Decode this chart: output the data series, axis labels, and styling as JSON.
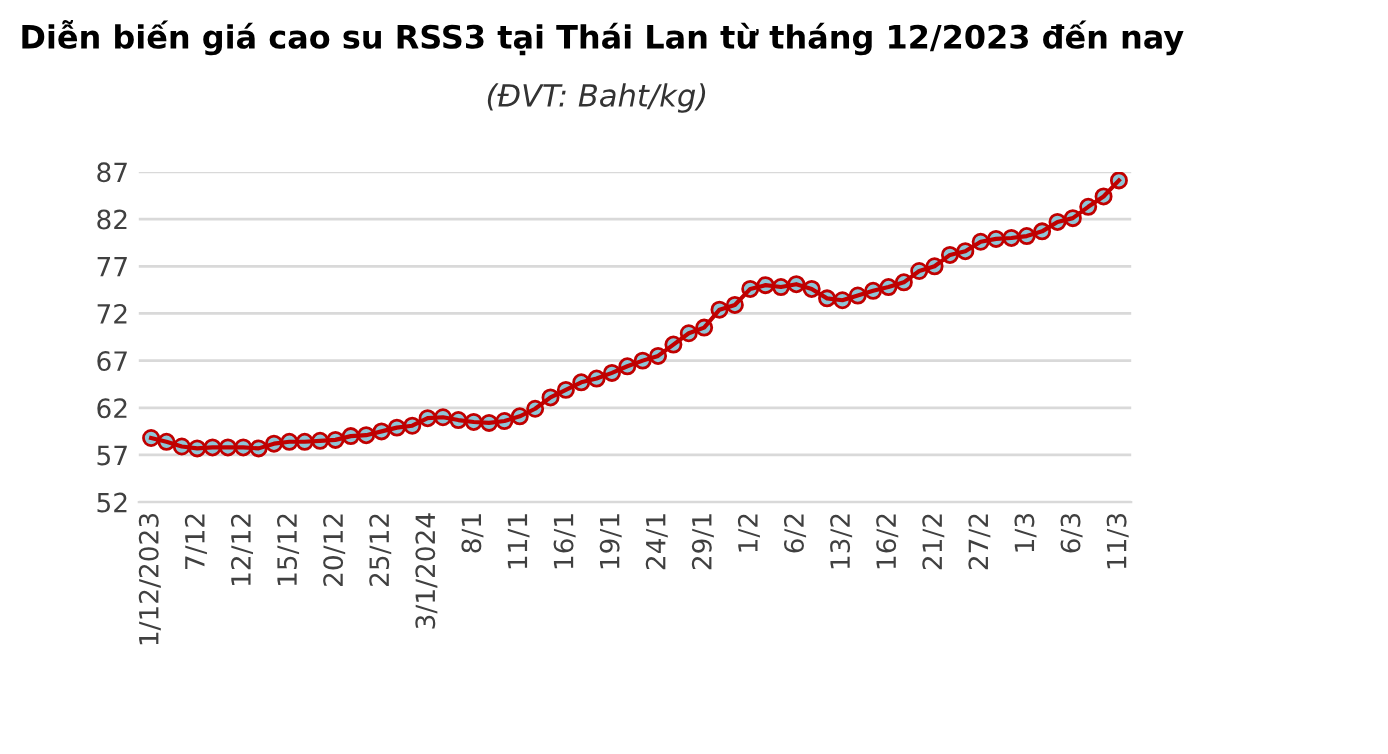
{
  "chart_data": {
    "type": "line",
    "title": "Diễn biến giá cao su RSS3 tại Thái Lan từ tháng 12/2023 đến nay",
    "subtitle": "(ĐVT: Baht/kg)",
    "categories": [
      "1/12/2023",
      null,
      null,
      "7/12",
      null,
      null,
      "12/12",
      null,
      null,
      "15/12",
      null,
      null,
      "20/12",
      null,
      null,
      "25/12",
      null,
      null,
      "3/1/2024",
      null,
      null,
      "8/1",
      null,
      null,
      "11/1",
      null,
      null,
      "16/1",
      null,
      null,
      "19/1",
      null,
      null,
      "24/1",
      null,
      null,
      "29/1",
      null,
      null,
      "1/2",
      null,
      null,
      "6/2",
      null,
      null,
      "13/2",
      null,
      null,
      "16/2",
      null,
      null,
      "21/2",
      null,
      null,
      "27/2",
      null,
      null,
      "1/3",
      null,
      null,
      "6/3",
      null,
      null,
      "11/3"
    ],
    "series": [
      {
        "color": "#c00000",
        "colors": [
          "#8ec5d6",
          "#8ec5d6",
          "#8ec5d6",
          "#8ec5d6",
          "#8ec5d6",
          "#8ec5d6",
          "#8ec5d6",
          "#8ec5d6",
          "#8ec5d6",
          "#8ec5d6",
          "#8ec5d6",
          "#8ec5d6",
          "#8ec5d6",
          "#8ec5d6",
          "#8ec5d6",
          "#8ec5d6",
          "#8ec5d6",
          "#8ec5d6",
          "#8ec5d6",
          "#8ec5d6",
          "#8ec5d6",
          "#8ec5d6",
          "#8ec5d6",
          "#8ec5d6",
          "#8ec5d6",
          "#8ec5d6",
          "#8ec5d6",
          "#8ec5d6",
          "#8ec5d6",
          "#8ec5d6",
          "#8ec5d6",
          "#8ec5d6",
          "#8ec5d6",
          "#8ec5d6",
          "#8ec5d6",
          "#8ec5d6",
          "#8ec5d6",
          "#8ec5d6",
          "#8ec5d6",
          "#8ec5d6",
          "#8ec5d6",
          "#8ec5d6",
          "#8ec5d6",
          "#8ec5d6",
          "#8ec5d6",
          "#8ec5d6",
          "#8ec5d6",
          "#8ec5d6",
          "#8ec5d6",
          "#8ec5d6",
          "#8ec5d6",
          "#8ec5d6",
          "#8ec5d6",
          "#8ec5d6",
          "#8ec5d6",
          "#8ec5d6",
          "#8ec5d6",
          "#8ec5d6",
          "#8ec5d6",
          "#8ec5d6",
          "#8ec5d6",
          "#8ec5d6",
          "#8ec5d6",
          "#8ec5d6"
        ],
        "values": [
          58.8,
          58.4,
          57.9,
          57.7,
          57.8,
          57.8,
          57.8,
          57.7,
          58.2,
          58.4,
          58.4,
          58.5,
          58.6,
          59.0,
          59.1,
          59.5,
          59.9,
          60.1,
          60.9,
          61.0,
          60.7,
          60.5,
          60.4,
          60.6,
          61.1,
          61.9,
          63.1,
          63.9,
          64.7,
          65.1,
          65.7,
          66.4,
          67.0,
          67.5,
          68.7,
          69.9,
          70.5,
          72.4,
          72.9,
          74.6,
          75.0,
          74.8,
          75.1,
          74.6,
          73.6,
          73.4,
          73.9,
          74.4,
          74.8,
          75.3,
          76.5,
          77.0,
          78.2,
          78.6,
          79.6,
          79.9,
          80.0,
          80.2,
          80.7,
          81.7,
          82.1,
          83.3,
          84.4,
          86.1
        ]
      }
    ],
    "ylim": [
      52,
      87
    ],
    "yticks": [
      52,
      57,
      62,
      67,
      72,
      77,
      82,
      87
    ],
    "grid": "y",
    "marker": "circle",
    "line_style": "solid",
    "legend": false
  }
}
